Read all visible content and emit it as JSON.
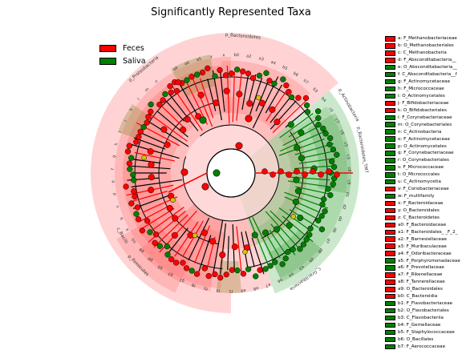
{
  "title": "Significantly Represented Taxa",
  "colors": {
    "feces": "#ff0000",
    "saliva": "#008000",
    "node_neutral": "#d4c400",
    "feces_sector": "#ff6060",
    "saliva_sector": "#5fb85f"
  },
  "condition_legend": [
    {
      "label": "Feces",
      "color": "#ff0000"
    },
    {
      "label": "Saliva",
      "color": "#008000"
    }
  ],
  "taxa_legend": [
    {
      "label": "a: F_Methanobacteriaceae",
      "color": "#ff0000"
    },
    {
      "label": "b: O_Methanobacteriales",
      "color": "#ff0000"
    },
    {
      "label": "c: C_Methanobacteria",
      "color": "#ff0000"
    },
    {
      "label": "d: F_Absconditabacteria__",
      "color": "#ff0000"
    },
    {
      "label": "e: O_Absconditabacteria__",
      "color": "#008000"
    },
    {
      "label": "f: C_Absconditabacteria__f",
      "color": "#008000"
    },
    {
      "label": "g: F_Actinomycetaceae",
      "color": "#008000"
    },
    {
      "label": "h: F_Micrococcaceae",
      "color": "#008000"
    },
    {
      "label": "i: O_Actinomycetales",
      "color": "#008000"
    },
    {
      "label": "j: F_Bifidobacteriaceae",
      "color": "#ff0000"
    },
    {
      "label": "k: O_Bifidobacteriales",
      "color": "#ff0000"
    },
    {
      "label": "l: F_Corynebacteriaceae",
      "color": "#008000"
    },
    {
      "label": "m: O_Corynebacteriales",
      "color": "#008000"
    },
    {
      "label": "n: C_Actinobacteria",
      "color": "#008000"
    },
    {
      "label": "o: F_Actinomycetaceae",
      "color": "#008000"
    },
    {
      "label": "p: O_Actinomycetales",
      "color": "#008000"
    },
    {
      "label": "q: F_Corynebacteriaceae",
      "color": "#008000"
    },
    {
      "label": "r: O_Corynebacteriales",
      "color": "#008000"
    },
    {
      "label": "s: F_Micrococcaceae",
      "color": "#008000"
    },
    {
      "label": "t: O_Micrococcales",
      "color": "#008000"
    },
    {
      "label": "u: C_Actinomycetia",
      "color": "#008000"
    },
    {
      "label": "v: F_Coriobacteriaceae",
      "color": "#ff0000"
    },
    {
      "label": "w: F_multifamily",
      "color": "#008000"
    },
    {
      "label": "x: F_Bacteroidaceae",
      "color": "#ff0000"
    },
    {
      "label": "y: O_Bacteroidales",
      "color": "#ff0000"
    },
    {
      "label": "z: C_Bacteroidetes",
      "color": "#ff0000"
    },
    {
      "label": "a0: F_Bacteroidaceae",
      "color": "#ff0000"
    },
    {
      "label": "a1: F_Bacteroidales_ _F_2_",
      "color": "#ff0000"
    },
    {
      "label": "a2: F_Barnesiellaceae",
      "color": "#ff0000"
    },
    {
      "label": "a3: F_Muribaculaceae",
      "color": "#ff0000"
    },
    {
      "label": "a4: F_Odoribacteraceae",
      "color": "#ff0000"
    },
    {
      "label": "a5: F_Porphyromonadaceae",
      "color": "#008000"
    },
    {
      "label": "a6: F_Prevotellaceae",
      "color": "#008000"
    },
    {
      "label": "a7: F_Rikenellaceae",
      "color": "#ff0000"
    },
    {
      "label": "a8: F_Tannerellaceae",
      "color": "#ff0000"
    },
    {
      "label": "a9: O_Bacteroidales",
      "color": "#ff0000"
    },
    {
      "label": "b0: C_Bacteroidia",
      "color": "#ff0000"
    },
    {
      "label": "b1: F_Flavobacteriaceae",
      "color": "#008000"
    },
    {
      "label": "b2: O_Flavobacteriales",
      "color": "#008000"
    },
    {
      "label": "b3: C_Flavobacteriia",
      "color": "#008000"
    },
    {
      "label": "b4: F_Gemellaceae",
      "color": "#008000"
    },
    {
      "label": "b5: F_Staphylococcaceae",
      "color": "#008000"
    },
    {
      "label": "b6: O_Bacillales",
      "color": "#008000"
    },
    {
      "label": "b7: F_Aerococcaceae",
      "color": "#008000"
    }
  ],
  "sector_labels": [
    {
      "text": "p_Bacteroidetes"
    },
    {
      "text": "p_Actinobacteria"
    },
    {
      "text": "p_Bacteroidetes_TM7"
    },
    {
      "text": "c_Gracilibacteria"
    },
    {
      "text": "p_Firmicutes"
    },
    {
      "text": "c_Bacilli"
    },
    {
      "text": "p_Proteobacteria"
    }
  ],
  "node_letters": [
    "a9",
    "a0",
    "a5",
    "y",
    "x",
    "b0",
    "a2",
    "a3",
    "a4",
    "b5",
    "b6",
    "b7",
    "b3",
    "b4",
    "c0",
    "c7",
    "c6",
    "c5",
    "c3",
    "c8",
    "c9",
    "d1",
    "d2",
    "d4",
    "d6",
    "d7",
    "d8",
    "d9",
    "e3",
    "e4",
    "e6",
    "e7",
    "e8",
    "e9",
    "f1",
    "f3",
    "f5",
    "f8",
    "g1",
    "g3",
    "g5",
    "g8",
    "g9",
    "h0",
    "a",
    "b",
    "c",
    "d",
    "e",
    "f",
    "g",
    "h",
    "i",
    "j",
    "k",
    "l",
    "m",
    "n"
  ]
}
